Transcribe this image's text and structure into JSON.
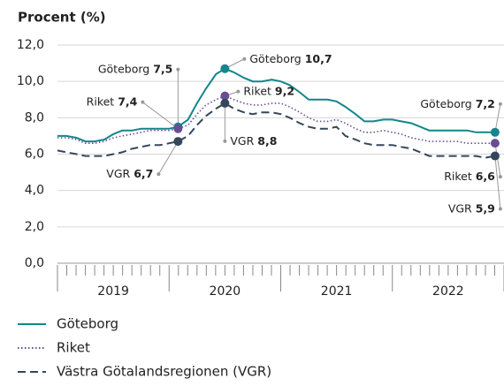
{
  "chart_data": {
    "type": "line",
    "y_label": "Procent (%)",
    "xlim": [
      2019,
      2023
    ],
    "xticks": [
      {
        "value": 2019.5,
        "label": "2019"
      },
      {
        "value": 2020.5,
        "label": "2020"
      },
      {
        "value": 2021.5,
        "label": "2021"
      },
      {
        "value": 2022.5,
        "label": "2022"
      }
    ],
    "ylim": [
      0,
      12
    ],
    "yticks": [
      {
        "value": 0,
        "label": "0,0"
      },
      {
        "value": 2,
        "label": "2,0"
      },
      {
        "value": 4,
        "label": "4,0"
      },
      {
        "value": 6,
        "label": "6,0"
      },
      {
        "value": 8,
        "label": "8,0"
      },
      {
        "value": 10,
        "label": "10,0"
      },
      {
        "value": 12,
        "label": "12,0"
      }
    ],
    "grid": true,
    "x": [
      2019.0,
      2019.08,
      2019.17,
      2019.25,
      2019.33,
      2019.42,
      2019.5,
      2019.58,
      2019.67,
      2019.75,
      2019.83,
      2019.92,
      2020.0,
      2020.08,
      2020.17,
      2020.25,
      2020.33,
      2020.42,
      2020.5,
      2020.58,
      2020.67,
      2020.75,
      2020.83,
      2020.92,
      2021.0,
      2021.08,
      2021.17,
      2021.25,
      2021.33,
      2021.42,
      2021.5,
      2021.58,
      2021.67,
      2021.75,
      2021.83,
      2021.92,
      2022.0,
      2022.08,
      2022.17,
      2022.25,
      2022.33,
      2022.42,
      2022.5,
      2022.58,
      2022.67,
      2022.75,
      2022.83,
      2022.92
    ],
    "series": [
      {
        "name": "Göteborg",
        "color": "#12868c",
        "dash": "solid",
        "values": [
          7.0,
          7.0,
          6.9,
          6.7,
          6.7,
          6.8,
          7.1,
          7.3,
          7.3,
          7.4,
          7.4,
          7.4,
          7.4,
          7.5,
          7.9,
          8.8,
          9.6,
          10.4,
          10.7,
          10.5,
          10.2,
          10.0,
          10.0,
          10.1,
          10.0,
          9.8,
          9.4,
          9.0,
          9.0,
          9.0,
          8.9,
          8.6,
          8.2,
          7.8,
          7.8,
          7.9,
          7.9,
          7.8,
          7.7,
          7.5,
          7.3,
          7.3,
          7.3,
          7.3,
          7.3,
          7.2,
          7.2,
          7.2
        ]
      },
      {
        "name": "Riket",
        "color": "#6a4c93",
        "dash": "dotted",
        "values": [
          6.9,
          6.9,
          6.8,
          6.6,
          6.6,
          6.7,
          6.9,
          7.0,
          7.1,
          7.2,
          7.3,
          7.3,
          7.3,
          7.4,
          7.6,
          8.2,
          8.7,
          9.0,
          9.2,
          9.0,
          8.8,
          8.7,
          8.7,
          8.8,
          8.8,
          8.6,
          8.3,
          8.0,
          7.8,
          7.8,
          7.9,
          7.7,
          7.4,
          7.2,
          7.2,
          7.3,
          7.2,
          7.1,
          6.9,
          6.8,
          6.7,
          6.7,
          6.7,
          6.7,
          6.6,
          6.6,
          6.6,
          6.6
        ]
      },
      {
        "name": "Västra Götalandsregionen (VGR)",
        "color": "#34465a",
        "dash": "dashed",
        "values": [
          6.2,
          6.1,
          6.0,
          5.9,
          5.9,
          5.9,
          6.0,
          6.1,
          6.3,
          6.4,
          6.5,
          6.5,
          6.6,
          6.7,
          7.0,
          7.6,
          8.1,
          8.5,
          8.8,
          8.5,
          8.3,
          8.2,
          8.3,
          8.3,
          8.2,
          8.0,
          7.7,
          7.5,
          7.4,
          7.4,
          7.5,
          7.0,
          6.8,
          6.6,
          6.5,
          6.5,
          6.5,
          6.4,
          6.3,
          6.1,
          5.9,
          5.9,
          5.9,
          5.9,
          5.9,
          5.9,
          5.8,
          5.9
        ]
      }
    ],
    "annotations": [
      {
        "text": "Göteborg",
        "x": 2020.08,
        "y": 7.5,
        "label": "7,5",
        "color": "#12868c"
      },
      {
        "text": "Riket",
        "x": 2020.08,
        "y": 7.4,
        "label": "7,4",
        "color": "#6a4c93"
      },
      {
        "text": "VGR",
        "x": 2020.08,
        "y": 6.7,
        "label": "6,7",
        "color": "#34465a"
      },
      {
        "text": "Göteborg",
        "x": 2020.5,
        "y": 10.7,
        "label": "10,7",
        "color": "#12868c"
      },
      {
        "text": "Riket",
        "x": 2020.5,
        "y": 9.2,
        "label": "9,2",
        "color": "#6a4c93"
      },
      {
        "text": "VGR",
        "x": 2020.5,
        "y": 8.8,
        "label": "8,8",
        "color": "#34465a"
      },
      {
        "text": "Göteborg",
        "x": 2022.92,
        "y": 7.2,
        "label": "7,2",
        "color": "#12868c"
      },
      {
        "text": "Riket",
        "x": 2022.92,
        "y": 6.6,
        "label": "6,6",
        "color": "#6a4c93"
      },
      {
        "text": "VGR",
        "x": 2022.92,
        "y": 5.9,
        "label": "5,9",
        "color": "#34465a"
      }
    ]
  }
}
